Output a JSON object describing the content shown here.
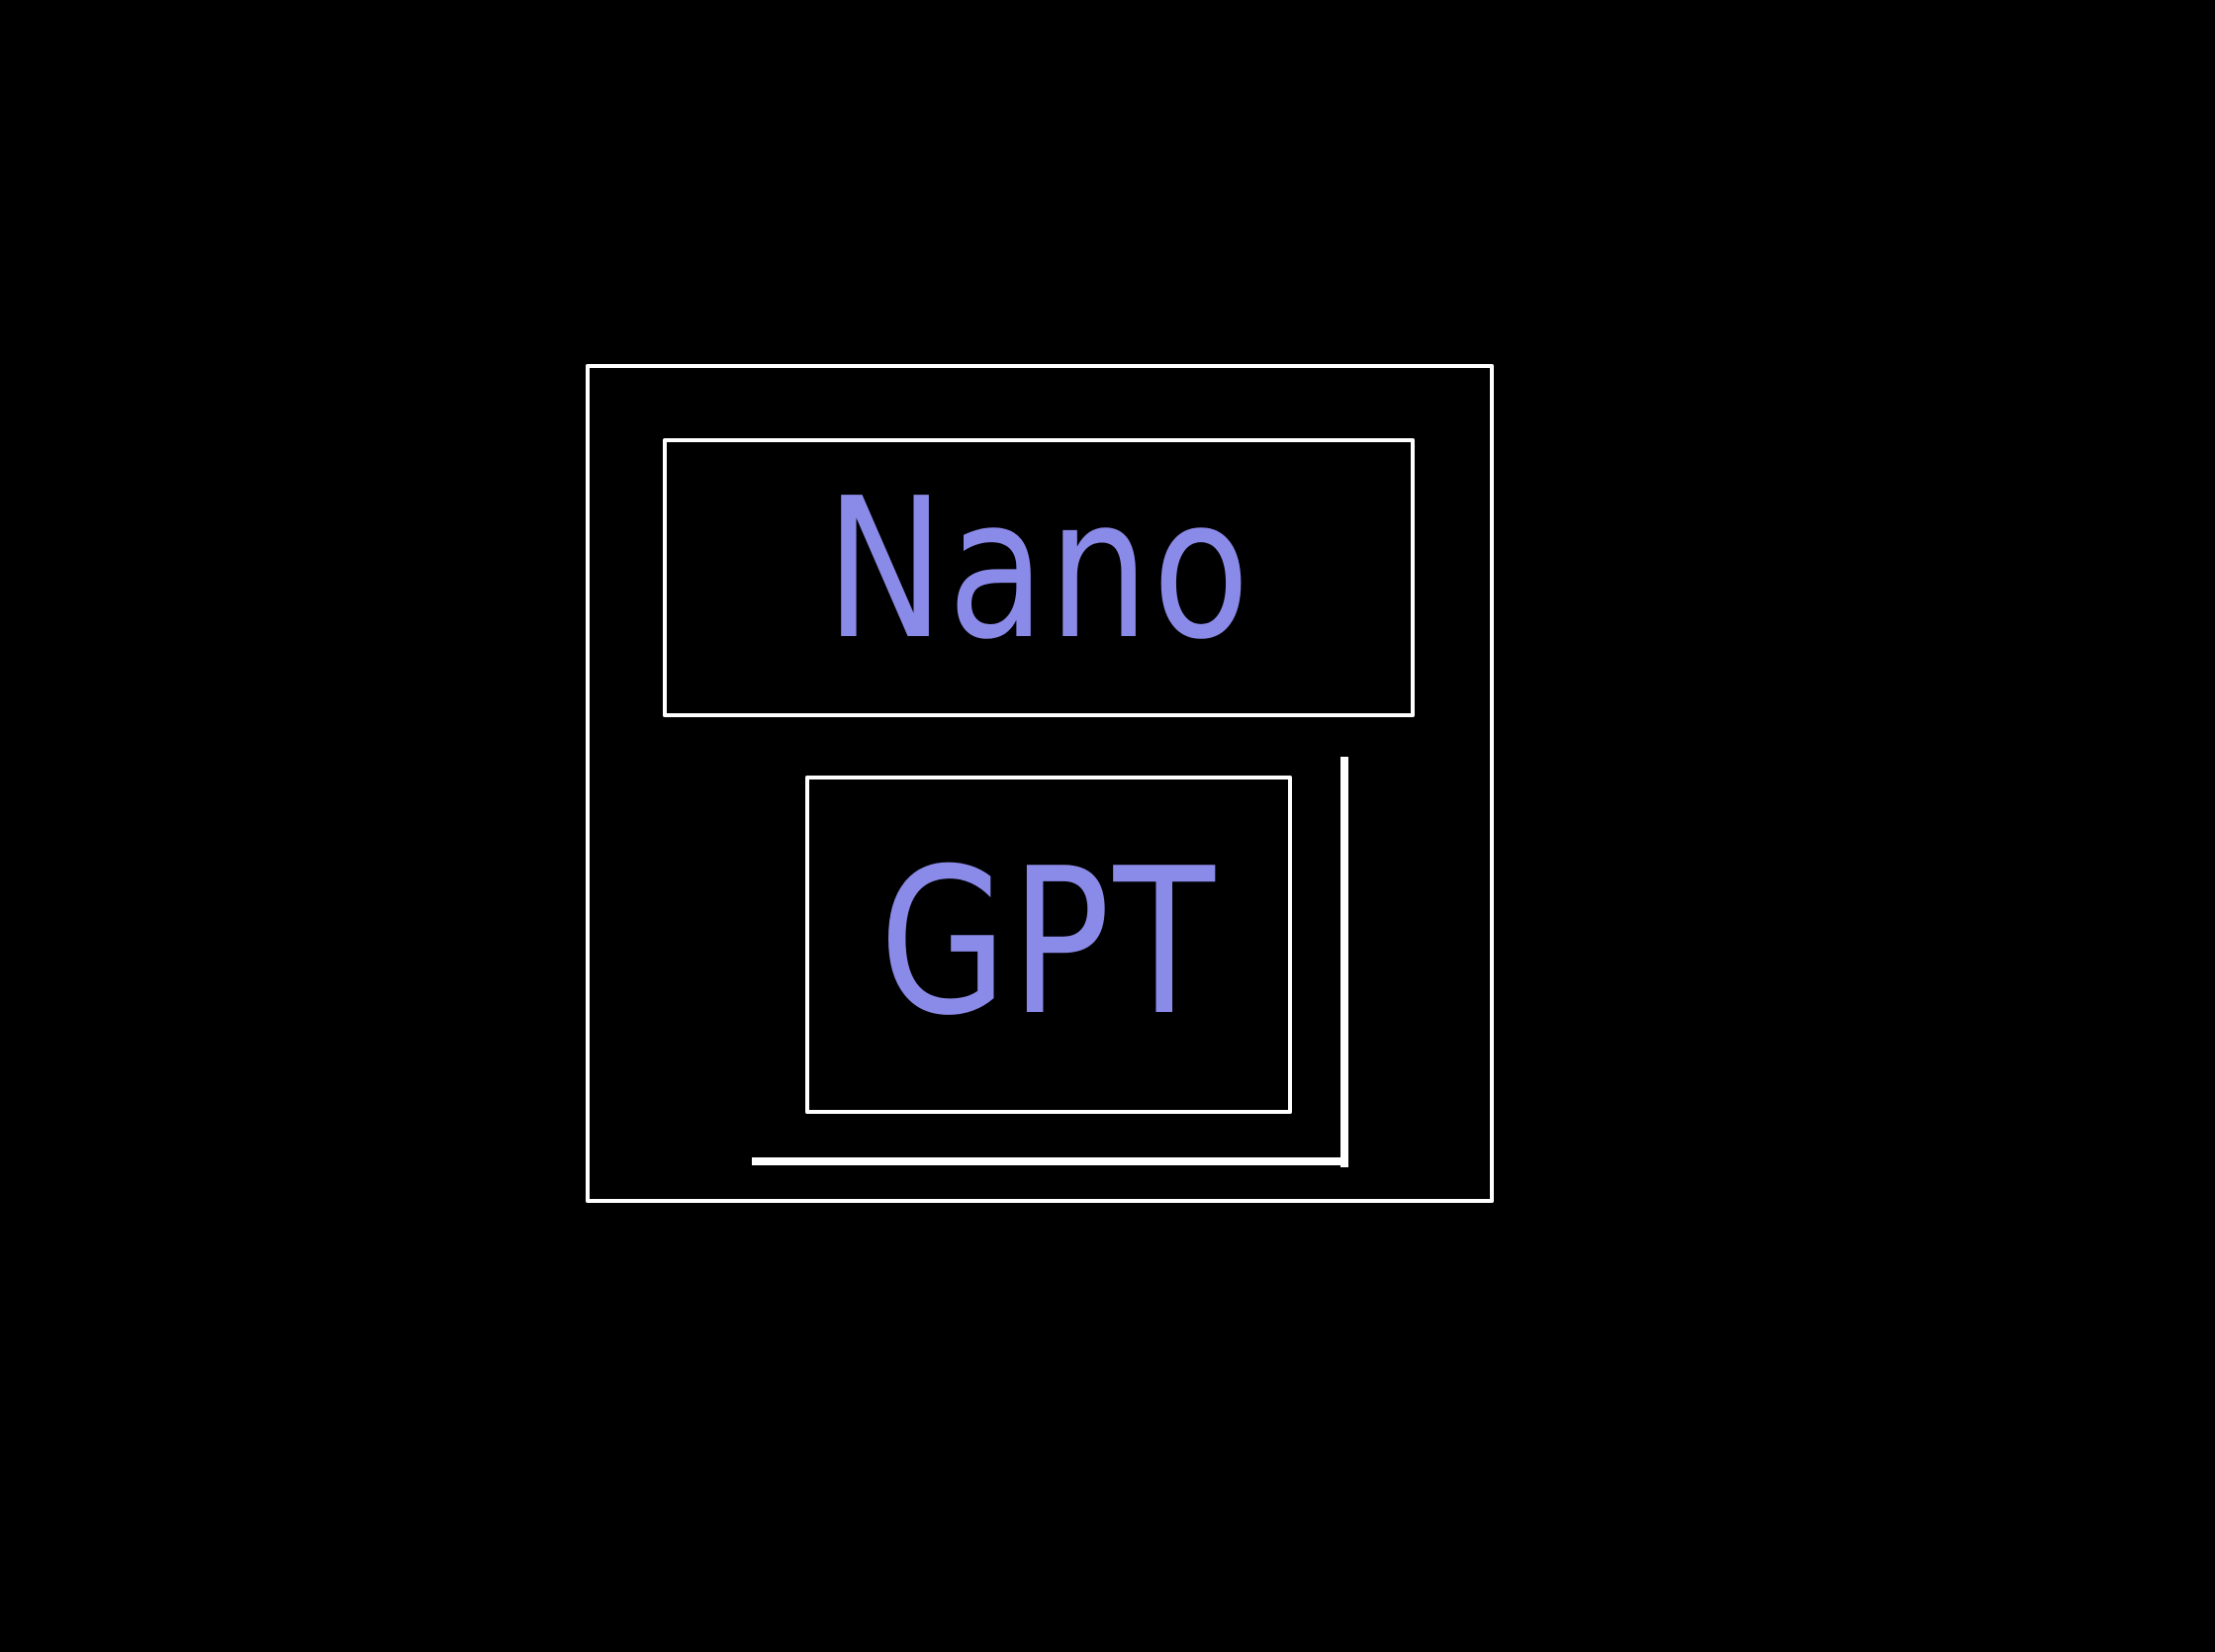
{
  "logo": {
    "line1": "Nano",
    "line2": "GPT"
  },
  "colors": {
    "background": "#000000",
    "frame": "#ffffff",
    "text": "#8a8ae8"
  }
}
